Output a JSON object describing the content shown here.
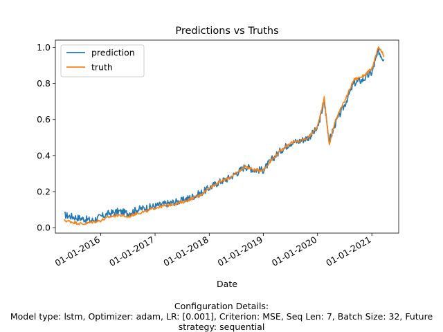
{
  "chart_data": {
    "type": "line",
    "title": "Predictions vs Truths",
    "xlabel": "Date",
    "ylabel": "",
    "xlim": [
      "2015-03-01",
      "2021-07-01"
    ],
    "ylim": [
      -0.03,
      1.04
    ],
    "x_ticks": [
      "01-01-2016",
      "01-01-2017",
      "01-01-2018",
      "01-01-2019",
      "01-01-2020",
      "01-01-2021"
    ],
    "y_ticks": [
      "0.0",
      "0.2",
      "0.4",
      "0.6",
      "0.8",
      "1.0"
    ],
    "legend_position": "top-left",
    "grid": false,
    "colors": {
      "prediction": "#1f77b4",
      "truth": "#ff7f0e"
    },
    "x": [
      "2015-05-01",
      "2015-07-01",
      "2015-09-01",
      "2015-11-01",
      "2016-01-01",
      "2016-03-01",
      "2016-05-01",
      "2016-07-01",
      "2016-09-01",
      "2016-11-01",
      "2017-01-01",
      "2017-03-01",
      "2017-05-01",
      "2017-07-01",
      "2017-09-01",
      "2017-11-01",
      "2018-01-01",
      "2018-03-01",
      "2018-05-01",
      "2018-07-01",
      "2018-09-01",
      "2018-11-01",
      "2019-01-01",
      "2019-03-01",
      "2019-05-01",
      "2019-07-01",
      "2019-09-01",
      "2019-11-01",
      "2020-01-01",
      "2020-02-15",
      "2020-03-20",
      "2020-05-01",
      "2020-07-01",
      "2020-09-01",
      "2020-11-01",
      "2021-01-01",
      "2021-02-15",
      "2021-03-25"
    ],
    "series": [
      {
        "name": "prediction",
        "values": [
          0.07,
          0.06,
          0.05,
          0.04,
          0.06,
          0.08,
          0.09,
          0.08,
          0.1,
          0.11,
          0.12,
          0.13,
          0.14,
          0.15,
          0.17,
          0.19,
          0.22,
          0.25,
          0.27,
          0.3,
          0.34,
          0.32,
          0.32,
          0.38,
          0.43,
          0.47,
          0.48,
          0.5,
          0.55,
          0.7,
          0.48,
          0.58,
          0.68,
          0.8,
          0.82,
          0.86,
          0.98,
          0.93
        ]
      },
      {
        "name": "truth",
        "values": [
          0.04,
          0.03,
          0.02,
          0.03,
          0.04,
          0.06,
          0.07,
          0.06,
          0.08,
          0.09,
          0.11,
          0.12,
          0.13,
          0.14,
          0.16,
          0.18,
          0.22,
          0.25,
          0.27,
          0.3,
          0.34,
          0.32,
          0.32,
          0.38,
          0.43,
          0.47,
          0.48,
          0.5,
          0.56,
          0.72,
          0.46,
          0.6,
          0.7,
          0.82,
          0.84,
          0.88,
          1.0,
          0.95
        ]
      }
    ]
  },
  "caption": {
    "line1": "Configuration Details:",
    "line2": "Model type: lstm, Optimizer: adam, LR: [0.001], Criterion: MSE, Seq Len: 7, Batch Size: 32, Future",
    "line3": "strategy: sequential"
  }
}
